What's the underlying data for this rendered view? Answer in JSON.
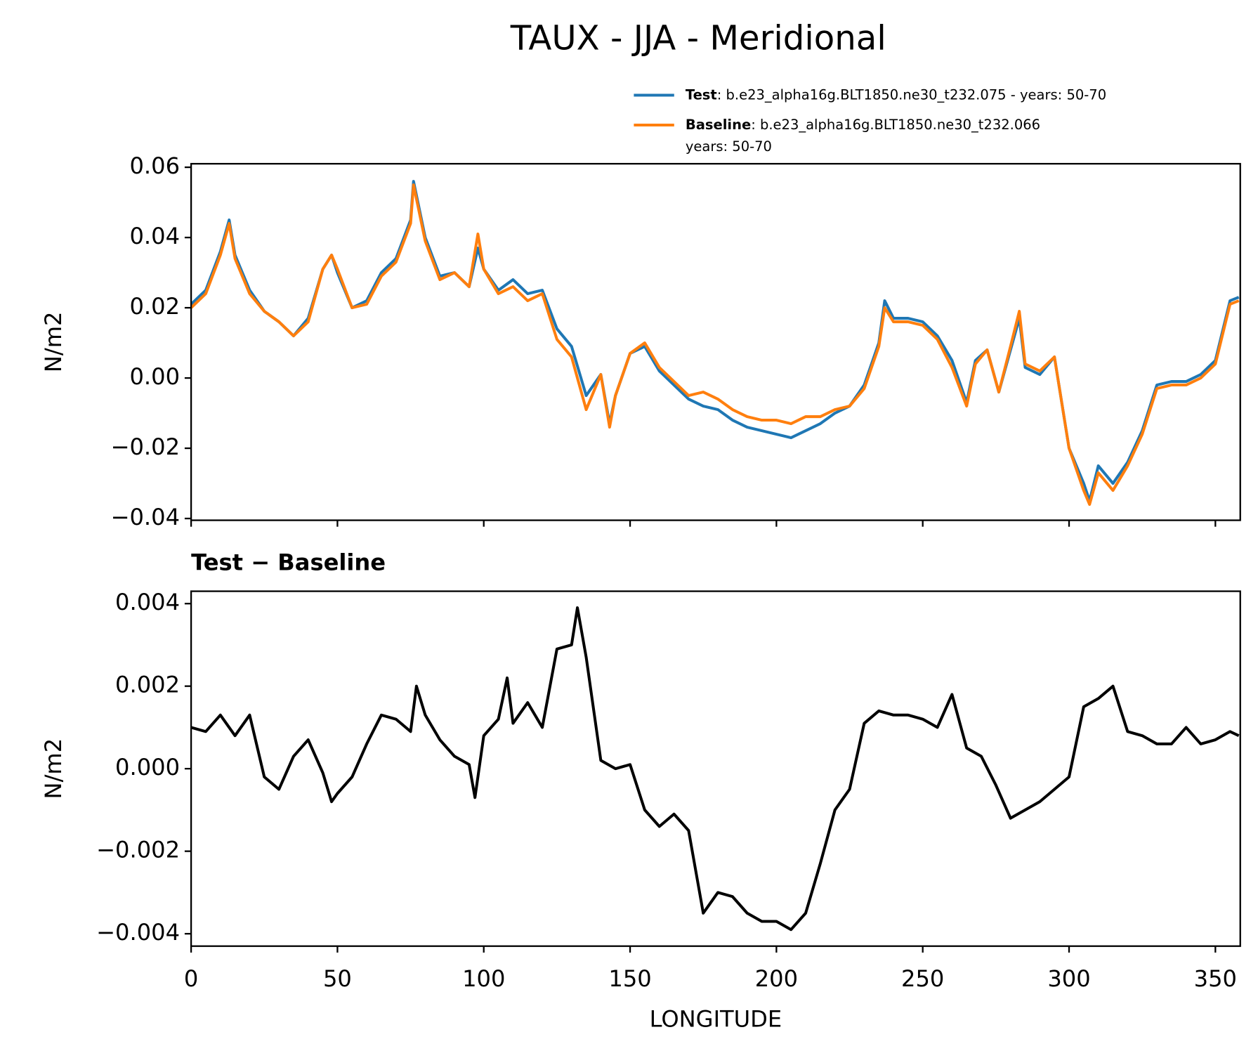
{
  "title": "TAUX - JJA - Meridional",
  "chart_data": [
    {
      "type": "line",
      "ylabel": "N/m2",
      "x": [
        0,
        5,
        10,
        13,
        15,
        20,
        25,
        30,
        35,
        40,
        45,
        48,
        50,
        55,
        60,
        65,
        70,
        75,
        76,
        80,
        85,
        90,
        95,
        98,
        100,
        105,
        110,
        115,
        120,
        125,
        130,
        135,
        140,
        143,
        145,
        150,
        155,
        160,
        165,
        170,
        175,
        180,
        185,
        190,
        195,
        200,
        205,
        210,
        215,
        220,
        225,
        230,
        235,
        237,
        240,
        245,
        250,
        255,
        260,
        265,
        268,
        272,
        276,
        280,
        283,
        285,
        290,
        295,
        300,
        305,
        307,
        310,
        315,
        320,
        325,
        330,
        335,
        340,
        345,
        350,
        355,
        358
      ],
      "series": [
        {
          "name": "Test",
          "description": [
            ": b.e23_alpha16g.BLT1850.ne30_t232.075 - years: 50-70"
          ],
          "color": "#1f77b4",
          "values": [
            0.021,
            0.025,
            0.036,
            0.045,
            0.035,
            0.025,
            0.019,
            0.016,
            0.012,
            0.017,
            0.031,
            0.035,
            0.03,
            0.02,
            0.022,
            0.03,
            0.034,
            0.045,
            0.056,
            0.04,
            0.029,
            0.03,
            0.026,
            0.037,
            0.031,
            0.025,
            0.028,
            0.024,
            0.025,
            0.014,
            0.009,
            -0.005,
            0.001,
            -0.013,
            -0.005,
            0.007,
            0.009,
            0.002,
            -0.002,
            -0.006,
            -0.008,
            -0.009,
            -0.012,
            -0.014,
            -0.015,
            -0.016,
            -0.017,
            -0.015,
            -0.013,
            -0.01,
            -0.008,
            -0.002,
            0.01,
            0.022,
            0.017,
            0.017,
            0.016,
            0.012,
            0.005,
            -0.007,
            0.005,
            0.008,
            -0.004,
            0.008,
            0.017,
            0.003,
            0.001,
            0.006,
            -0.02,
            -0.03,
            -0.035,
            -0.025,
            -0.03,
            -0.024,
            -0.015,
            -0.002,
            -0.001,
            -0.001,
            0.001,
            0.005,
            0.022,
            0.023
          ]
        },
        {
          "name": "Baseline",
          "description": [
            ": b.e23_alpha16g.BLT1850.ne30_t232.066",
            "years: 50-70"
          ],
          "color": "#ff7f0e",
          "values": [
            0.02,
            0.024,
            0.035,
            0.044,
            0.034,
            0.024,
            0.019,
            0.016,
            0.012,
            0.016,
            0.031,
            0.035,
            0.031,
            0.02,
            0.021,
            0.029,
            0.033,
            0.044,
            0.055,
            0.039,
            0.028,
            0.03,
            0.026,
            0.041,
            0.031,
            0.024,
            0.026,
            0.022,
            0.024,
            0.011,
            0.006,
            -0.009,
            0.001,
            -0.014,
            -0.005,
            0.007,
            0.01,
            0.003,
            -0.001,
            -0.005,
            -0.004,
            -0.006,
            -0.009,
            -0.011,
            -0.012,
            -0.012,
            -0.013,
            -0.011,
            -0.011,
            -0.009,
            -0.008,
            -0.003,
            0.009,
            0.02,
            0.016,
            0.016,
            0.015,
            0.011,
            0.003,
            -0.008,
            0.004,
            0.008,
            -0.004,
            0.009,
            0.019,
            0.004,
            0.002,
            0.006,
            -0.02,
            -0.032,
            -0.036,
            -0.027,
            -0.032,
            -0.025,
            -0.016,
            -0.003,
            -0.002,
            -0.002,
            0.0,
            0.004,
            0.021,
            0.022
          ]
        }
      ],
      "xlim": [
        0,
        358.5
      ],
      "xticks": [
        0,
        50,
        100,
        150,
        200,
        250,
        300,
        350
      ],
      "show_xtick_labels": false,
      "ylim": [
        -0.0405,
        0.061
      ],
      "yticks": [
        {
          "value": -0.04,
          "label": "−0.04"
        },
        {
          "value": -0.02,
          "label": "−0.02"
        },
        {
          "value": 0,
          "label": "0.00"
        },
        0.02,
        0.04,
        0.06
      ],
      "legend": "upper right",
      "line_width": 3.5
    },
    {
      "type": "line",
      "title": "Test − Baseline",
      "ylabel": "N/m2",
      "xlabel": "LONGITUDE",
      "x": [
        0,
        5,
        10,
        15,
        20,
        25,
        30,
        35,
        40,
        45,
        48,
        50,
        55,
        60,
        65,
        70,
        75,
        77,
        80,
        85,
        90,
        95,
        97,
        100,
        105,
        108,
        110,
        115,
        120,
        125,
        130,
        132,
        135,
        140,
        145,
        150,
        155,
        160,
        165,
        170,
        175,
        180,
        185,
        190,
        195,
        200,
        205,
        210,
        215,
        220,
        225,
        230,
        235,
        240,
        245,
        250,
        255,
        260,
        265,
        270,
        275,
        280,
        285,
        290,
        295,
        300,
        305,
        310,
        315,
        320,
        325,
        330,
        335,
        340,
        345,
        350,
        355,
        358
      ],
      "series": [
        {
          "color": "#000000",
          "values": [
            0.001,
            0.0009,
            0.0013,
            0.0008,
            0.0013,
            -0.0002,
            -0.0005,
            0.0003,
            0.0007,
            -0.0001,
            -0.0008,
            -0.0006,
            -0.0002,
            0.0006,
            0.0013,
            0.0012,
            0.0009,
            0.002,
            0.0013,
            0.0007,
            0.0003,
            0.0001,
            -0.0007,
            0.0008,
            0.0012,
            0.0022,
            0.0011,
            0.0016,
            0.001,
            0.0029,
            0.003,
            0.0039,
            0.0027,
            0.0002,
            0.0,
            0.0001,
            -0.001,
            -0.0014,
            -0.0011,
            -0.0015,
            -0.0035,
            -0.003,
            -0.0031,
            -0.0035,
            -0.0037,
            -0.0037,
            -0.0039,
            -0.0035,
            -0.0023,
            -0.001,
            -0.0005,
            0.0011,
            0.0014,
            0.0013,
            0.0013,
            0.0012,
            0.001,
            0.0018,
            0.0005,
            0.0003,
            -0.0004,
            -0.0012,
            -0.001,
            -0.0008,
            -0.0005,
            -0.0002,
            0.0015,
            0.0017,
            0.002,
            0.0009,
            0.0008,
            0.0006,
            0.0006,
            0.001,
            0.0006,
            0.0007,
            0.0009,
            0.0008
          ]
        }
      ],
      "xlim": [
        0,
        358.5
      ],
      "xticks": [
        0,
        50,
        100,
        150,
        200,
        250,
        300,
        350
      ],
      "show_xtick_labels": true,
      "ylim": [
        -0.0043,
        0.0043
      ],
      "yticks": [
        {
          "value": -0.004,
          "label": "−0.004"
        },
        {
          "value": -0.002,
          "label": "−0.002"
        },
        {
          "value": 0,
          "label": "0.000"
        },
        0.002,
        0.004
      ],
      "line_width": 3.5
    }
  ]
}
